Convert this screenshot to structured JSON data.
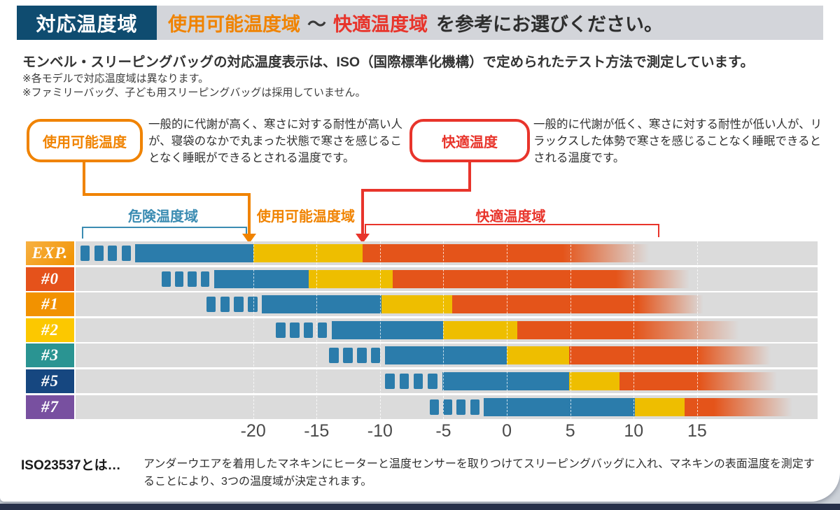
{
  "header": {
    "badge": "対応温度域",
    "title_orange": "使用可能温度域",
    "title_tilde": "～",
    "title_red": "快適温度域",
    "title_suffix": "を参考にお選びください。"
  },
  "intro": {
    "line": "モンベル・スリーピングバッグの対応温度表示は、ISO（国際標準化機構）で定められたテスト方法で測定しています。",
    "note1": "※各モデルで対応温度域は異なります。",
    "note2": "※ファミリーバッグ、子ども用スリーピングバッグは採用していません。"
  },
  "callouts": {
    "usable": {
      "label": "使用可能温度",
      "color": "#f08300",
      "desc": "一般的に代謝が高く、寒さに対する耐性が高い人が、寝袋のなかで丸まった状態で寒さを感じることなく睡眠ができるとされる温度です。"
    },
    "comfort": {
      "label": "快適温度",
      "color": "#e8342b",
      "desc": "一般的に代謝が低く、寒さに対する耐性が低い人が、リラックスした体勢で寒さを感じることなく睡眠できるとされる温度です。"
    }
  },
  "footer": {
    "term": "ISO23537とは…",
    "desc": "アンダーウエアを着用したマネキンにヒーターと温度センサーを取りつけてスリーピングバッグに入れ、マネキンの表面温度を測定することにより、3つの温度域が決定されます。"
  },
  "chart_data": {
    "type": "bar",
    "subtype": "horizontal-temperature-ranges",
    "unit": "°C",
    "axis": {
      "domain": [
        -34,
        24.5
      ],
      "ticks": [
        -20,
        -15,
        -10,
        -5,
        0,
        5,
        10,
        15
      ]
    },
    "zones": [
      {
        "id": "danger",
        "label": "危険温度域",
        "color": "#3b8cb2",
        "bracket": [
          -33.5,
          -20.7
        ]
      },
      {
        "id": "usable",
        "label": "使用可能温度域",
        "color": "#f08300",
        "arrow_at": -20.3
      },
      {
        "id": "comfort",
        "label": "快適温度域",
        "color": "#e8342b",
        "bracket": [
          -11.2,
          11.8
        ],
        "arrow_at": -11.4
      }
    ],
    "colors": {
      "danger_bar": "#2b7cab",
      "usable_bar": "#eebe00",
      "comfort_bar": "#e4541a",
      "plot_bg": "#dbdbdb"
    },
    "rows": [
      {
        "model": "EXP.",
        "label_color": "#f19200",
        "label_color2": "#f7b143",
        "dash_start": -33.6,
        "solid_start": -29.3,
        "usable_limit": -20.0,
        "comfort": -11.4,
        "fade_start": 4.4,
        "fade_end": 11.2
      },
      {
        "model": "#0",
        "label_color": "#e5521b",
        "dash_start": -27.2,
        "solid_start": -23.1,
        "usable_limit": -15.6,
        "comfort": -9.0,
        "fade_start": 8.6,
        "fade_end": 14.4
      },
      {
        "model": "#1",
        "label_color": "#f29200",
        "dash_start": -23.7,
        "solid_start": -19.3,
        "usable_limit": -9.9,
        "comfort": -4.3,
        "fade_start": 10.3,
        "fade_end": 15.5
      },
      {
        "model": "#2",
        "label_color": "#fcc800",
        "dash_start": -18.2,
        "solid_start": -13.8,
        "usable_limit": -5.0,
        "comfort": 0.8,
        "fade_start": 10.0,
        "fade_end": 18.3
      },
      {
        "model": "#3",
        "label_color": "#2a9492",
        "dash_start": -14.0,
        "solid_start": -9.6,
        "usable_limit": 0.0,
        "comfort": 4.9,
        "fade_start": 15.0,
        "fade_end": 20.8
      },
      {
        "model": "#5",
        "label_color": "#164780",
        "dash_start": -9.6,
        "solid_start": -5.1,
        "usable_limit": 4.9,
        "comfort": 8.9,
        "fade_start": 15.2,
        "fade_end": 21.3
      },
      {
        "model": "#7",
        "label_color": "#7850a0",
        "dash_start": -6.1,
        "solid_start": -1.8,
        "usable_limit": 10.1,
        "comfort": 14.0,
        "fade_start": 16.3,
        "fade_end": 22.5
      }
    ]
  }
}
